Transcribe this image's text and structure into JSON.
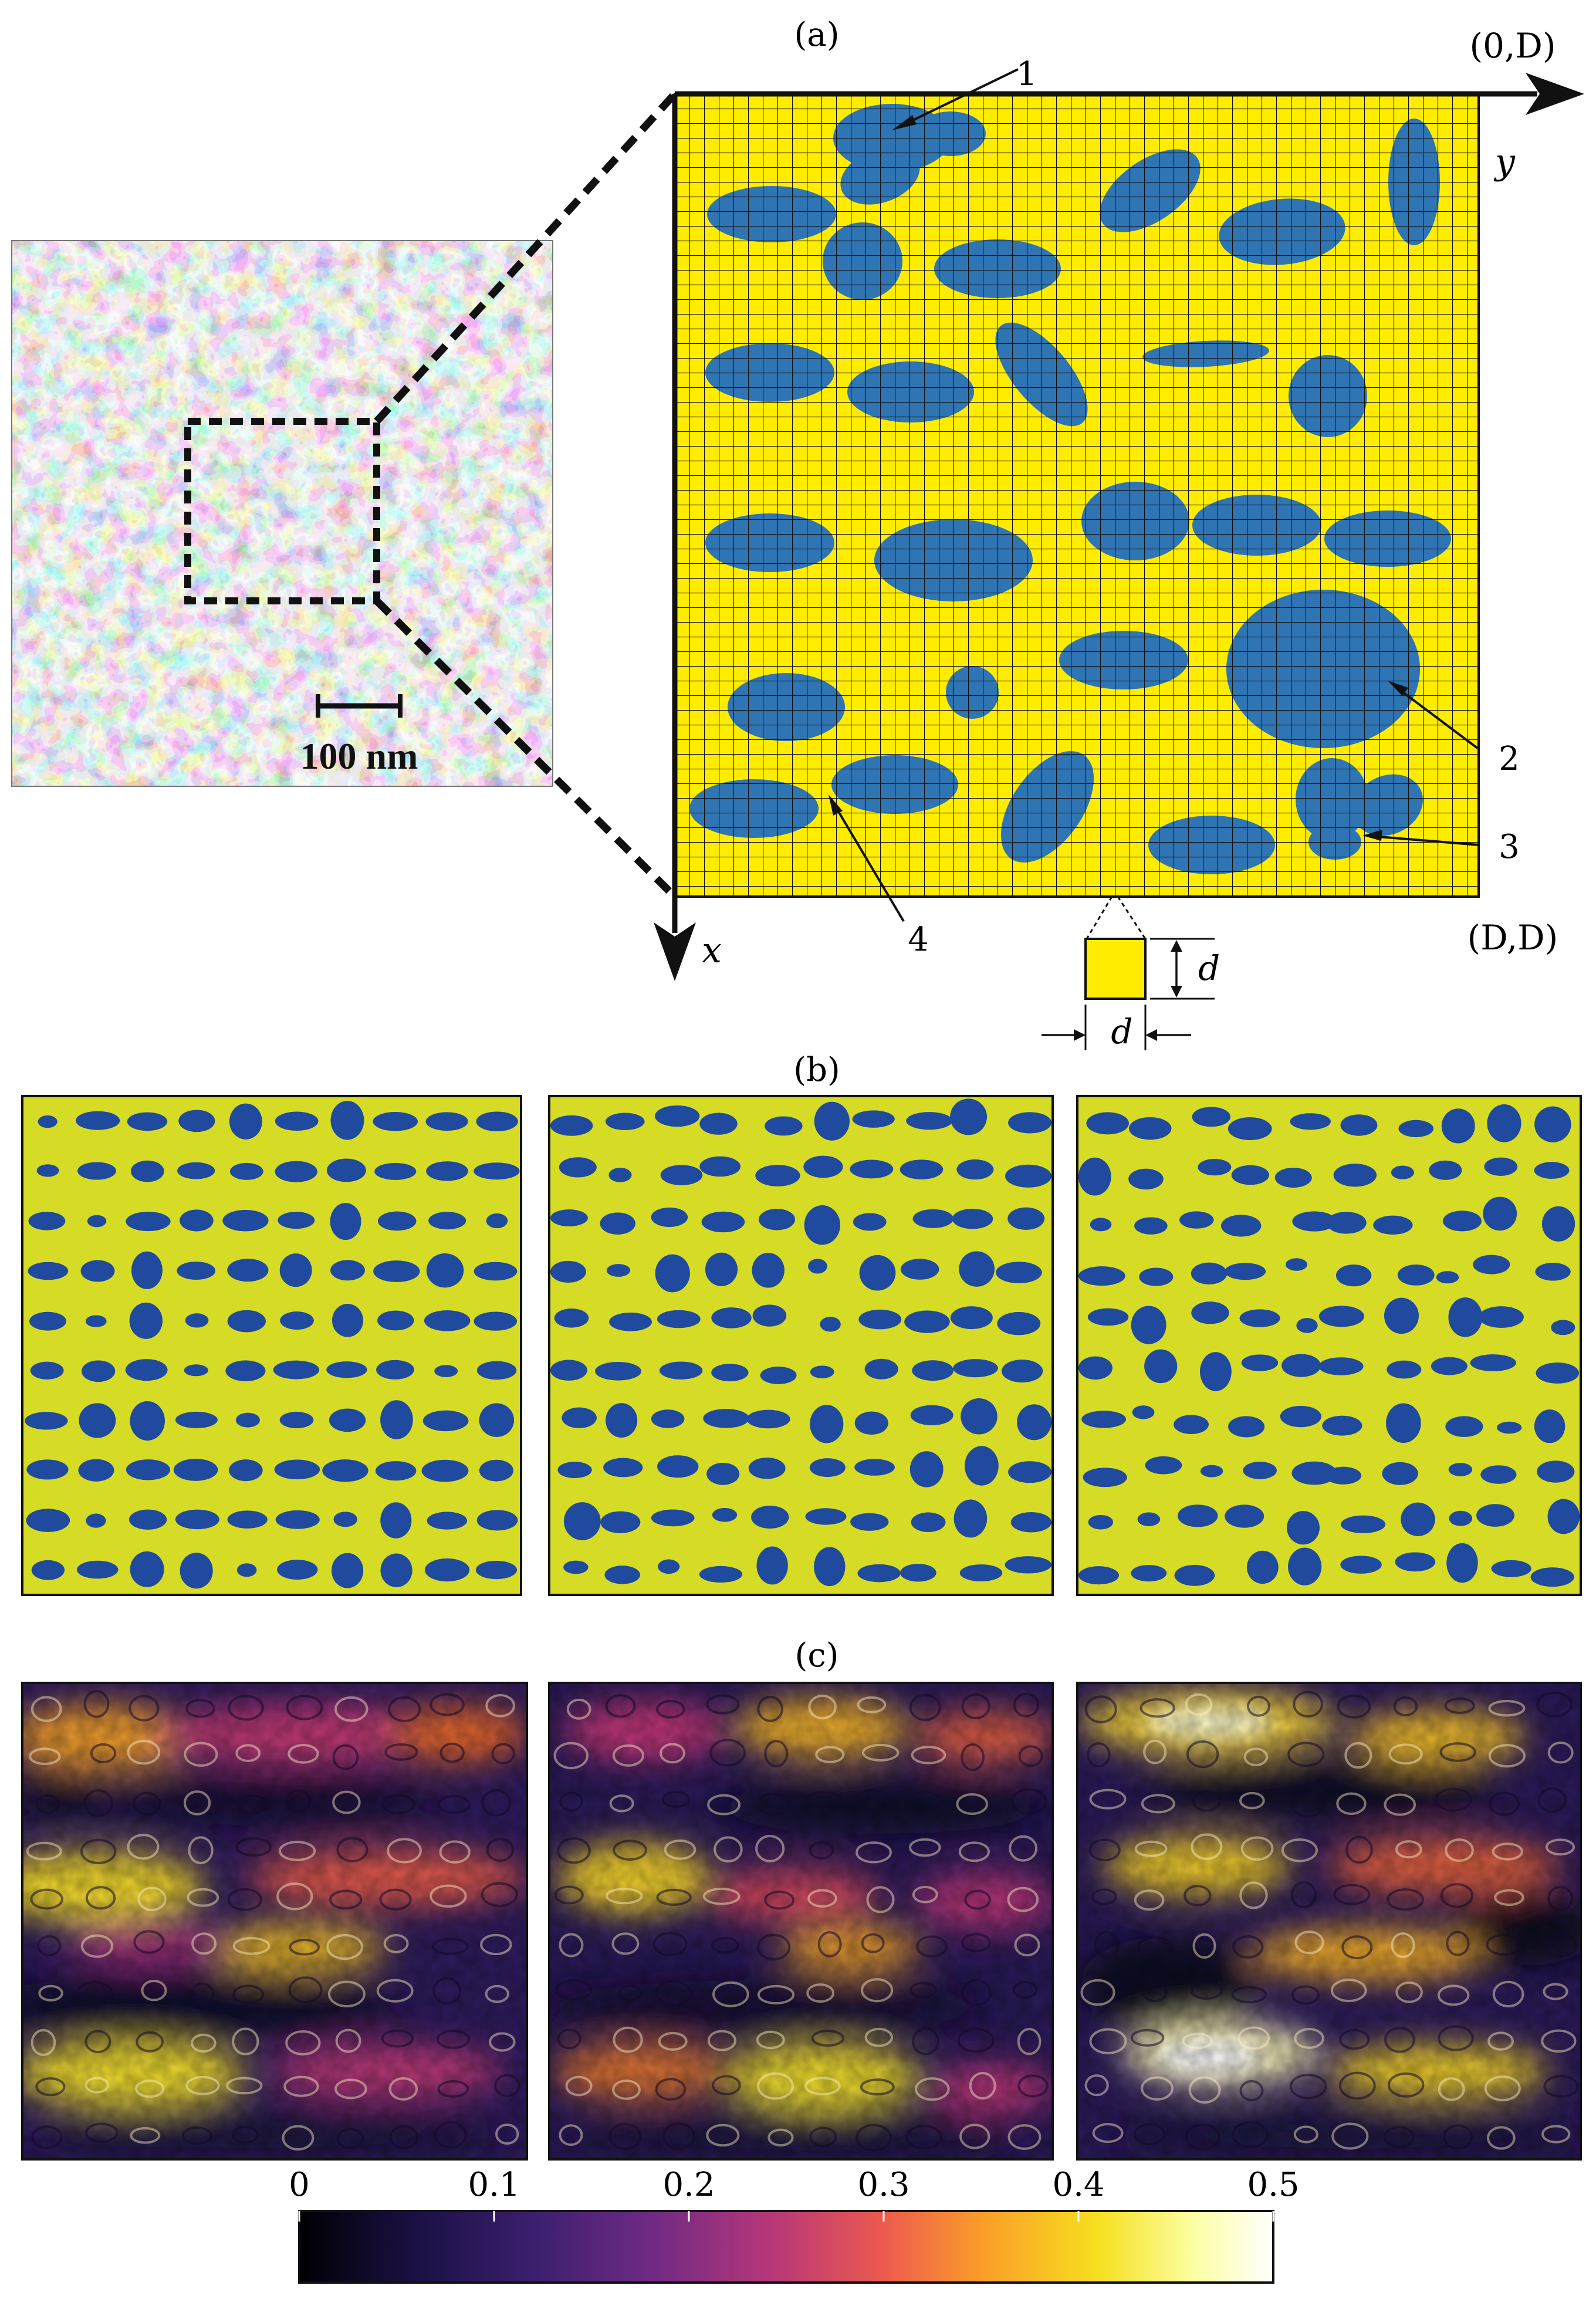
{
  "panels": {
    "a": {
      "label": "(a)",
      "corner_top_right": "(0,D)",
      "corner_bottom_right": "(D,D)",
      "axis_y": "y",
      "axis_x": "x",
      "scale_bar": "100 nm",
      "cell_size": "d",
      "callouts": [
        "1",
        "2",
        "3",
        "4"
      ]
    },
    "b": {
      "label": "(b)"
    },
    "c": {
      "label": "(c)"
    }
  },
  "colorbar": {
    "ticks": [
      "0",
      "0.1",
      "0.2",
      "0.3",
      "0.4",
      "0.5"
    ],
    "stops": [
      "#000004",
      "#1b1044",
      "#3b1f6e",
      "#6e2a84",
      "#b5367a",
      "#ec5a4e",
      "#fb9c29",
      "#f6e01f",
      "#fcffa4",
      "#ffffff"
    ]
  },
  "colors": {
    "yellow": "#ffec00",
    "yellow_b": "#d6dc26",
    "blue": "#2f74b3",
    "blue_b": "#1f4a9e",
    "grid": "#111111"
  }
}
